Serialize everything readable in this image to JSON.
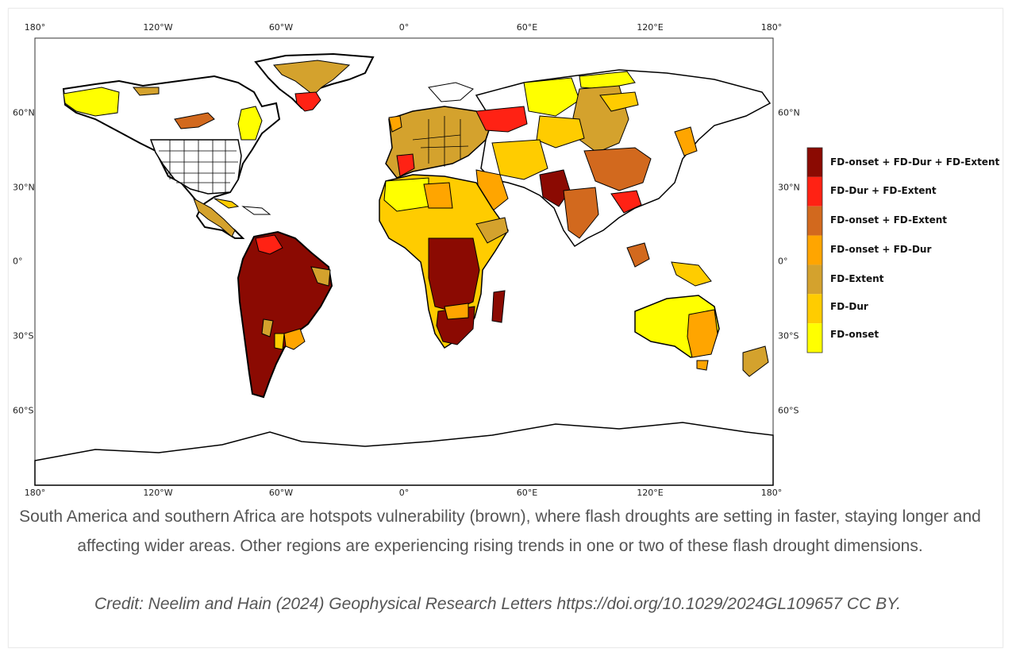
{
  "map": {
    "longitude_ticks": [
      "180°",
      "120°W",
      "60°W",
      "0°",
      "60°E",
      "120°E",
      "180°"
    ],
    "latitude_ticks": [
      "60°N",
      "30°N",
      "0°",
      "30°S",
      "60°S"
    ],
    "legend": [
      {
        "label": "FD-onset + FD-Dur + FD-Extent",
        "color": "#8b0a02"
      },
      {
        "label": "FD-Dur + FD-Extent",
        "color": "#ff2214"
      },
      {
        "label": "FD-onset + FD-Extent",
        "color": "#d2691e"
      },
      {
        "label": "FD-onset + FD-Dur",
        "color": "#ffa500"
      },
      {
        "label": "FD-Extent",
        "color": "#d4a22d"
      },
      {
        "label": "FD-Dur",
        "color": "#ffcc00"
      },
      {
        "label": "FD-onset",
        "color": "#ffff00"
      }
    ]
  },
  "caption": {
    "text": "South America and southern Africa are hotspots vulnerability (brown), where flash droughts are setting in faster, staying longer and affecting wider areas. Other regions are experiencing rising trends in one or two of these flash drought dimensions.",
    "credit": "Credit: Neelim and Hain (2024) Geophysical Research Letters https://doi.org/10.1029/2024GL109657 CC BY."
  }
}
